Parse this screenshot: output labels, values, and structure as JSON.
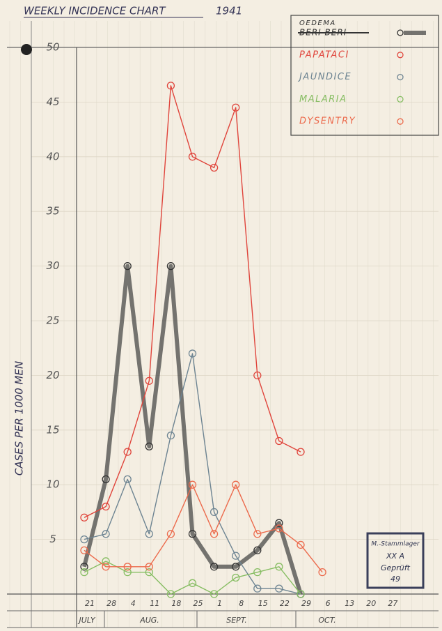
{
  "chart_data": {
    "type": "line",
    "title": "WEEKLY INCIDENCE CHART",
    "year": "1941",
    "y_label": "CASES PER 1000 MEN",
    "categories": [
      "21",
      "28",
      "4",
      "11",
      "18",
      "25",
      "1",
      "8",
      "15",
      "22",
      "29",
      "6",
      "13",
      "20",
      "27"
    ],
    "months": [
      "JULY",
      "AUG.",
      "SEPT.",
      "OCT."
    ],
    "ylim": [
      0,
      50
    ],
    "yticks": [
      5,
      10,
      15,
      20,
      25,
      30,
      35,
      40,
      45,
      50
    ],
    "grid": true,
    "legend_struck": "BERI BERI",
    "series": [
      {
        "name": "OEDEMA",
        "color": "#4a4a48",
        "width": 6,
        "values": [
          2.5,
          10.5,
          30,
          13.5,
          30,
          5.5,
          2.5,
          2.5,
          4,
          6.5,
          0,
          null,
          null,
          null,
          null
        ]
      },
      {
        "name": "PAPATACI",
        "color": "#e0453c",
        "width": 1.4,
        "values": [
          7,
          8,
          13,
          19.5,
          46.5,
          40,
          39,
          44.5,
          20,
          14,
          13,
          null,
          null,
          null,
          null
        ]
      },
      {
        "name": "JAUNDICE",
        "color": "#6d8492",
        "width": 1.4,
        "values": [
          5,
          5.5,
          10.5,
          5.5,
          14.5,
          22,
          7.5,
          3.5,
          0.5,
          0.5,
          0,
          null,
          null,
          null,
          null
        ]
      },
      {
        "name": "MALARIA",
        "color": "#86bd62",
        "width": 1.4,
        "values": [
          2,
          3,
          2,
          2,
          0,
          1,
          0,
          1.5,
          2,
          2.5,
          0,
          null,
          null,
          null,
          null
        ]
      },
      {
        "name": "DYSENTRY",
        "color": "#ec6a4c",
        "width": 1.4,
        "values": [
          4,
          2.5,
          2.5,
          2.5,
          5.5,
          10,
          5.5,
          10,
          5.5,
          6,
          4.5,
          2,
          null,
          null,
          null
        ]
      }
    ],
    "stamp": [
      "M.-Stammlager",
      "XX A",
      "Geprüft",
      "49"
    ]
  }
}
